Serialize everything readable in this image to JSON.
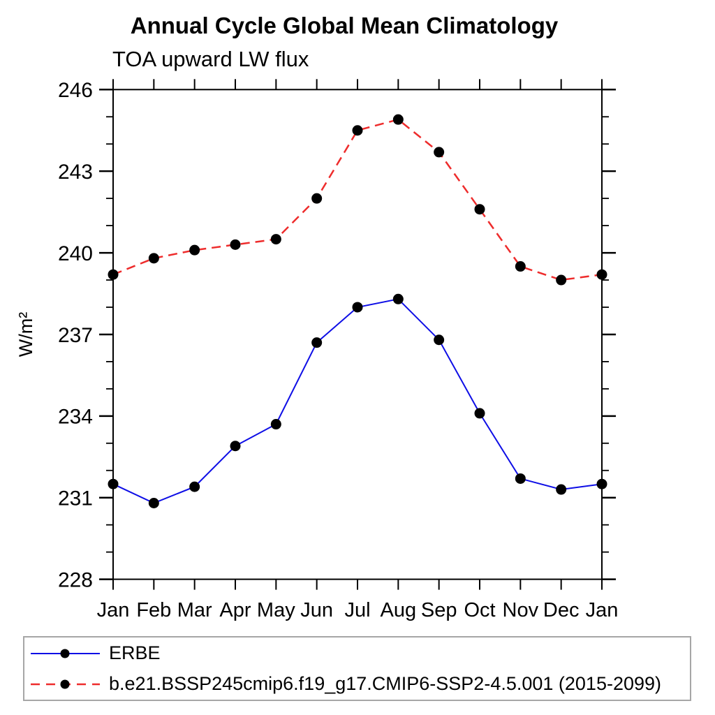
{
  "chart_data": {
    "type": "line",
    "title": "Annual Cycle Global Mean Climatology",
    "subtitle": "TOA upward LW flux",
    "ylabel": "W/m²",
    "categories": [
      "Jan",
      "Feb",
      "Mar",
      "Apr",
      "May",
      "Jun",
      "Jul",
      "Aug",
      "Sep",
      "Oct",
      "Nov",
      "Dec",
      "Jan"
    ],
    "ylim": [
      228,
      246
    ],
    "y_major_ticks": [
      228,
      231,
      234,
      237,
      240,
      243,
      246
    ],
    "y_minor_step": 1,
    "grid": false,
    "legend_position": "bottom",
    "axis_color": "#000000",
    "series": [
      {
        "name": "ERBE",
        "color": "#0e0ee6",
        "line_style": "solid",
        "marker": "filled-circle",
        "marker_color": "#000000",
        "values": [
          231.5,
          230.8,
          231.4,
          232.9,
          233.7,
          236.7,
          238.0,
          238.3,
          236.8,
          234.1,
          231.7,
          231.3,
          231.5
        ]
      },
      {
        "name": "b.e21.BSSP245cmip6.f19_g17.CMIP6-SSP2-4.5.001 (2015-2099)",
        "color": "#ee2c2c",
        "line_style": "dashed",
        "marker": "filled-circle",
        "marker_color": "#000000",
        "values": [
          239.2,
          239.8,
          240.1,
          240.3,
          240.5,
          242.0,
          244.5,
          244.9,
          243.7,
          241.6,
          239.5,
          239.0,
          239.2
        ]
      }
    ]
  }
}
